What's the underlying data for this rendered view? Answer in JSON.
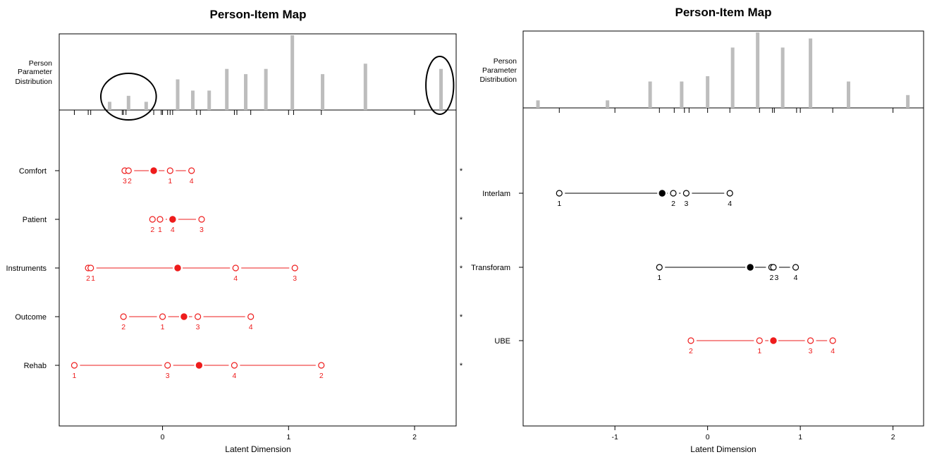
{
  "chart_data": [
    {
      "type": "person-item map",
      "title": "Person-Item Map",
      "xlabel": "Latent Dimension",
      "person_label": [
        "Person",
        "Parameter",
        "Distribution"
      ],
      "xlim": [
        -0.82,
        2.33
      ],
      "x_ticks": [
        0,
        1,
        2
      ],
      "person_distribution": {
        "x": [
          -0.42,
          -0.27,
          -0.13,
          0.12,
          0.24,
          0.37,
          0.51,
          0.66,
          0.82,
          1.03,
          1.27,
          1.61,
          2.21
        ],
        "height": [
          0.11,
          0.19,
          0.11,
          0.41,
          0.26,
          0.26,
          0.55,
          0.48,
          0.55,
          1.0,
          0.48,
          0.62,
          0.55
        ]
      },
      "rug_x": [
        -0.7,
        -0.59,
        -0.57,
        -0.32,
        -0.31,
        -0.29,
        -0.07,
        -0.01,
        0.04,
        0.06,
        0.08,
        0.27,
        0.3,
        0.57,
        0.59,
        0.7,
        1.04,
        1.26
      ],
      "items": [
        {
          "name": "Comfort",
          "location": -0.07,
          "thresholds": [
            {
              "x": -0.3,
              "label": "3"
            },
            {
              "x": -0.27,
              "label": "2"
            },
            {
              "x": 0.06,
              "label": "1"
            },
            {
              "x": 0.23,
              "label": "4"
            }
          ],
          "flag": "*",
          "color": "#ee1c1c"
        },
        {
          "name": "Patient",
          "location": 0.08,
          "thresholds": [
            {
              "x": -0.08,
              "label": "2"
            },
            {
              "x": -0.02,
              "label": "1"
            },
            {
              "x": 0.08,
              "label": "4"
            },
            {
              "x": 0.31,
              "label": "3"
            }
          ],
          "flag": "*",
          "color": "#ee1c1c"
        },
        {
          "name": "Instruments",
          "location": 0.12,
          "thresholds": [
            {
              "x": -0.59,
              "label": "2"
            },
            {
              "x": -0.57,
              "label": "1"
            },
            {
              "x": 0.58,
              "label": "4"
            },
            {
              "x": 1.05,
              "label": "3"
            }
          ],
          "flag": "*",
          "color": "#ee1c1c"
        },
        {
          "name": "Outcome",
          "location": 0.17,
          "thresholds": [
            {
              "x": -0.31,
              "label": "2"
            },
            {
              "x": 0.0,
              "label": "1"
            },
            {
              "x": 0.28,
              "label": "3"
            },
            {
              "x": 0.7,
              "label": "4"
            }
          ],
          "flag": "*",
          "color": "#ee1c1c"
        },
        {
          "name": "Rehab",
          "location": 0.29,
          "thresholds": [
            {
              "x": -0.7,
              "label": "1"
            },
            {
              "x": 0.04,
              "label": "3"
            },
            {
              "x": 0.57,
              "label": "4"
            },
            {
              "x": 1.26,
              "label": "2"
            }
          ],
          "flag": "*",
          "color": "#ee1c1c"
        }
      ],
      "annotations": [
        {
          "shape": "ellipse",
          "cx": -0.27,
          "rx": 0.22,
          "ry_frac": 0.35
        },
        {
          "shape": "ellipse",
          "cx": 2.2,
          "rx": 0.11,
          "ry_frac": 0.5
        }
      ]
    },
    {
      "type": "person-item map",
      "title": "Person-Item Map",
      "xlabel": "Latent Dimension",
      "person_label": [
        "Person",
        "Parameter",
        "Distribution"
      ],
      "xlim": [
        -1.99,
        2.33
      ],
      "x_ticks": [
        -1,
        0,
        1,
        2
      ],
      "person_distribution": {
        "x": [
          -1.83,
          -1.08,
          -0.62,
          -0.28,
          0.0,
          0.27,
          0.54,
          0.81,
          1.11,
          1.52,
          2.16
        ],
        "height": [
          0.1,
          0.1,
          0.35,
          0.35,
          0.42,
          0.8,
          1.0,
          0.8,
          0.92,
          0.35,
          0.17
        ]
      },
      "rug_x": [
        -1.6,
        -0.52,
        -0.36,
        -0.25,
        -0.2,
        0.24,
        0.56,
        0.7,
        0.72,
        0.96,
        1.35
      ],
      "items": [
        {
          "name": "Interlam",
          "location": -0.49,
          "thresholds": [
            {
              "x": -1.6,
              "label": "1"
            },
            {
              "x": -0.37,
              "label": "2"
            },
            {
              "x": -0.23,
              "label": "3"
            },
            {
              "x": 0.24,
              "label": "4"
            }
          ],
          "flag": "",
          "color": "#000000"
        },
        {
          "name": "Transforam",
          "location": 0.46,
          "thresholds": [
            {
              "x": -0.52,
              "label": "1"
            },
            {
              "x": 0.69,
              "label": "2"
            },
            {
              "x": 0.71,
              "label": "3"
            },
            {
              "x": 0.95,
              "label": "4"
            }
          ],
          "flag": "",
          "color": "#000000"
        },
        {
          "name": "UBE",
          "location": 0.71,
          "thresholds": [
            {
              "x": -0.18,
              "label": "2"
            },
            {
              "x": 0.56,
              "label": "1"
            },
            {
              "x": 1.11,
              "label": "3"
            },
            {
              "x": 1.35,
              "label": "4"
            }
          ],
          "flag": "",
          "color": "#ee1c1c"
        }
      ],
      "annotations": []
    }
  ]
}
